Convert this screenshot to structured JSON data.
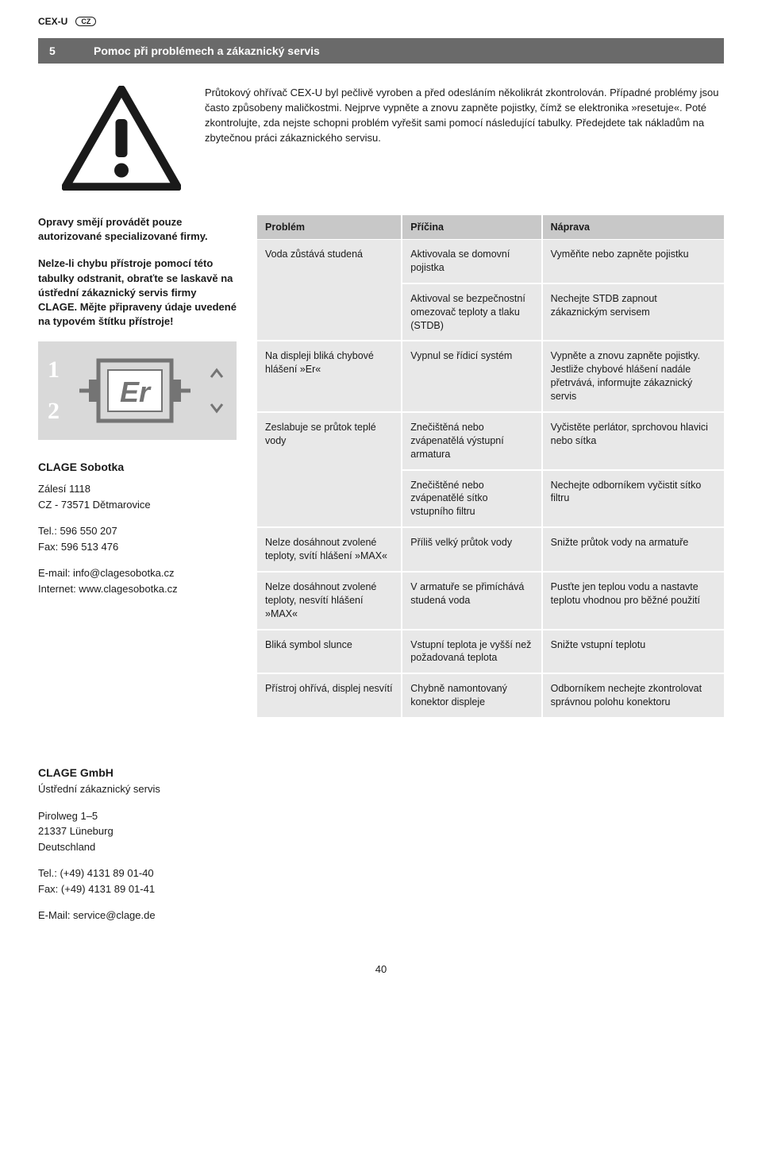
{
  "header": {
    "product": "CEX-U",
    "lang": "CZ"
  },
  "section": {
    "num": "5",
    "title": "Pomoc při problémech a zákaznický servis"
  },
  "intro": "Průtokový ohřívač CEX-U byl pečlivě vyroben a před odesláním několikrát zkontrolován. Případné problémy jsou často způsobeny maličkostmi. Nejprve vypněte a znovu zapněte pojistky, čímž se elektronika »resetuje«. Poté zkontrolujte, zda nejste schopni problém vyřešit sami pomocí následující tabulky. Předejdete tak nákladům na zbytečnou práci zákaznického servisu.",
  "left": {
    "p1": "Opravy smějí provádět pouze autorizované specializované firmy.",
    "p2": "Nelze-li chybu přístroje pomocí této tabulky odstranit, obraťte se laskavě na ústřední zákaznický servis firmy CLAGE. Mějte připraveny údaje uvedené na typovém štítku přístroje!"
  },
  "display": {
    "num1": "1",
    "num2": "2",
    "lcd": "Er"
  },
  "contact_local": {
    "name": "CLAGE Sobotka",
    "addr1": "Zálesí 1118",
    "addr2": "CZ - 73571 Dětmarovice",
    "tel": "Tel.: 596 550 207",
    "fax": "Fax: 596 513 476",
    "email": "E-mail: info@clagesobotka.cz",
    "web": "Internet: www.clagesobotka.cz"
  },
  "table": {
    "headers": {
      "c1": "Problém",
      "c2": "Příčina",
      "c3": "Náprava"
    },
    "rows": [
      {
        "problem": "Voda zůstává studená",
        "cause": "Aktivovala se domovní pojistka",
        "fix": "Vyměňte nebo zapněte pojistku",
        "rowspan_problem": 2
      },
      {
        "problem": "",
        "cause": "Aktivoval se bezpečnostní omezovač teploty a tlaku (STDB)",
        "fix": "Nechejte STDB zapnout zákaznickým servisem"
      },
      {
        "problem": "Na displeji bliká chybové hlášení »Er«",
        "cause": "Vypnul se řídicí systém",
        "fix": "Vypněte a znovu zapněte pojistky. Jestliže chybové hlášení nadále přetrvává, informujte zákaznický servis",
        "rowspan_problem": 1
      },
      {
        "problem": "Zeslabuje se průtok teplé vody",
        "cause": "Znečištěná nebo zvápenatělá výstupní armatura",
        "fix": "Vyčistěte perlátor, sprchovou hlavici nebo sítka",
        "rowspan_problem": 2
      },
      {
        "problem": "",
        "cause": "Znečištěné nebo zvápenatělé sítko vstupního filtru",
        "fix": "Nechejte odborníkem vyčistit sítko filtru"
      },
      {
        "problem": "Nelze dosáhnout zvolené teploty, svítí hlášení »MAX«",
        "cause": "Příliš velký průtok vody",
        "fix": "Snižte průtok vody na armatuře",
        "rowspan_problem": 1
      },
      {
        "problem": "Nelze dosáhnout zvolené teploty, nesvítí hlášení »MAX«",
        "cause": "V armatuře se přimíchává studená voda",
        "fix": "Pusťte jen teplou vodu a nastavte teplotu vhodnou pro běžné použití",
        "rowspan_problem": 1
      },
      {
        "problem": "Bliká symbol slunce",
        "cause": "Vstupní teplota je vyšší než požadovaná teplota",
        "fix": "Snižte vstupní teplotu",
        "rowspan_problem": 1
      },
      {
        "problem": "Přístroj ohřívá, displej nesvítí",
        "cause": "Chybně namontovaný konektor displeje",
        "fix": "Odborníkem nechejte zkontrolovat správnou polohu konektoru",
        "rowspan_problem": 1
      }
    ]
  },
  "footer_contact": {
    "name": "CLAGE GmbH",
    "subtitle": "Ústřední zákaznický servis",
    "addr1": "Pirolweg 1–5",
    "addr2": "21337 Lüneburg",
    "addr3": "Deutschland",
    "tel": "Tel.: (+49) 4131 89 01-40",
    "fax": "Fax: (+49) 4131 89 01-41",
    "email": "E-Mail: service@clage.de"
  },
  "page_num": "40"
}
